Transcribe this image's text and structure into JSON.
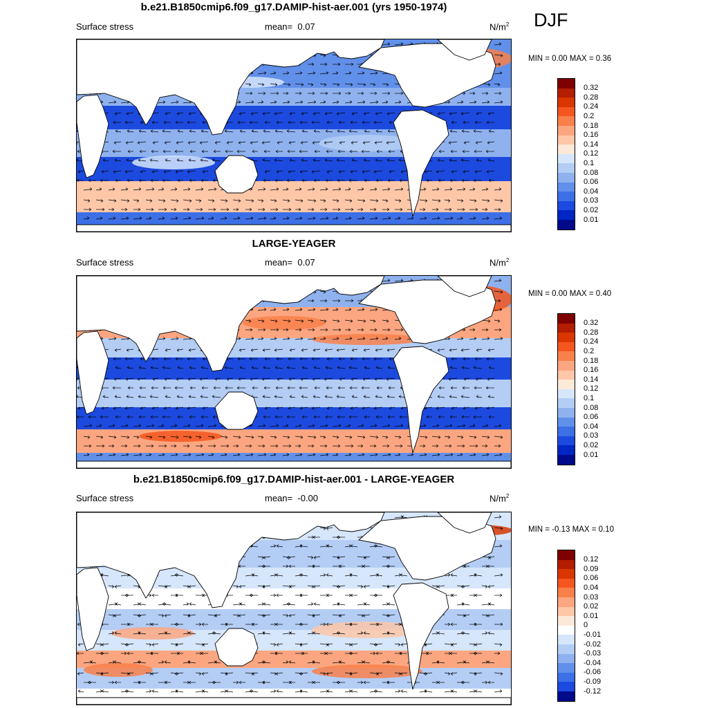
{
  "season": "DJF",
  "panels": [
    {
      "title": "b.e21.B1850cmip6.f09_g17.DAMIP-hist-aer.001 (yrs 1950-1974)",
      "variable": "Surface stress",
      "mean_label": "mean=",
      "mean_value": "0.07",
      "units": "N/m",
      "units_exp": "2",
      "minmax": "MIN =   0.00 MAX =   0.36",
      "colorbar_levels": [
        "0.32",
        "0.28",
        "0.24",
        "0.2",
        "0.18",
        "0.16",
        "0.14",
        "0.12",
        "0.1",
        "0.08",
        "0.06",
        "0.04",
        "0.03",
        "0.02",
        "0.01"
      ],
      "colors": [
        "#7f0000",
        "#b31d00",
        "#d93600",
        "#f5561f",
        "#f8804b",
        "#fba680",
        "#fdc7a8",
        "#fde9d8",
        "#d6e6fb",
        "#b3cdf5",
        "#8fb2ef",
        "#6190ea",
        "#3d6fe6",
        "#1c4ade",
        "#0026c4",
        "#000a8a"
      ]
    },
    {
      "title": "LARGE-YEAGER",
      "variable": "Surface stress",
      "mean_label": "mean=",
      "mean_value": "0.07",
      "units": "N/m",
      "units_exp": "2",
      "minmax": "MIN =   0.00 MAX =   0.40",
      "colorbar_levels": [
        "0.32",
        "0.28",
        "0.24",
        "0.2",
        "0.18",
        "0.16",
        "0.14",
        "0.12",
        "0.1",
        "0.08",
        "0.06",
        "0.04",
        "0.03",
        "0.02",
        "0.01"
      ],
      "colors": [
        "#7f0000",
        "#b31d00",
        "#d93600",
        "#f5561f",
        "#f8804b",
        "#fba680",
        "#fdc7a8",
        "#fde9d8",
        "#d6e6fb",
        "#b3cdf5",
        "#8fb2ef",
        "#6190ea",
        "#3d6fe6",
        "#1c4ade",
        "#0026c4",
        "#000a8a"
      ]
    },
    {
      "title": "b.e21.B1850cmip6.f09_g17.DAMIP-hist-aer.001 - LARGE-YEAGER",
      "variable": "Surface stress",
      "mean_label": "mean=",
      "mean_value": "-0.00",
      "units": "N/m",
      "units_exp": "2",
      "minmax": "MIN =  -0.13 MAX =   0.10",
      "colorbar_levels": [
        "0.12",
        "0.09",
        "0.06",
        "0.04",
        "0.03",
        "0.02",
        "0.01",
        "0",
        "-0.01",
        "-0.02",
        "-0.03",
        "-0.04",
        "-0.06",
        "-0.09",
        "-0.12"
      ],
      "colors": [
        "#7f0000",
        "#b31d00",
        "#d93600",
        "#f5561f",
        "#f8804b",
        "#fba680",
        "#fdc7a8",
        "#fde9d8",
        "#ffffff",
        "#d6e6fb",
        "#b3cdf5",
        "#8fb2ef",
        "#6190ea",
        "#3d6fe6",
        "#1c4ade",
        "#000a8a"
      ]
    }
  ]
}
